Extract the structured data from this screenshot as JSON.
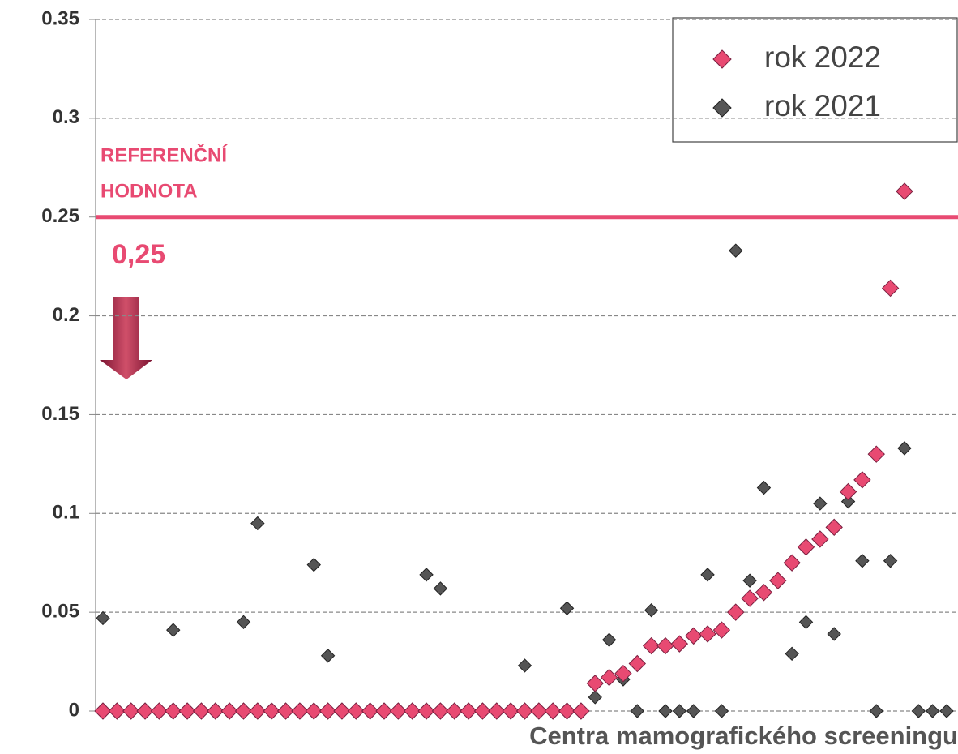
{
  "chart_data": {
    "type": "scatter",
    "xlabel": "Centra mamografického screeningu",
    "categories": [
      null,
      null,
      null,
      null,
      null,
      null,
      null,
      null,
      null,
      null,
      null,
      null,
      null,
      null,
      null,
      null,
      null,
      null,
      null,
      null,
      null,
      null,
      null,
      null,
      null,
      null,
      null,
      null,
      null,
      null,
      null,
      null,
      null,
      null,
      null,
      null,
      null,
      null,
      null,
      null,
      null,
      null,
      null,
      null,
      null,
      null,
      null,
      null,
      null,
      null,
      null,
      null,
      null,
      null,
      null,
      null,
      null,
      null,
      null,
      null,
      null
    ],
    "series": [
      {
        "name": "rok 2022",
        "color": "#e84a72",
        "values": [
          0,
          0,
          0,
          0,
          0,
          0,
          0,
          0,
          0,
          0,
          0,
          0,
          0,
          0,
          0,
          0,
          0,
          0,
          0,
          0,
          0,
          0,
          0,
          0,
          0,
          0,
          0,
          0,
          0,
          0,
          0,
          0,
          0,
          0,
          0,
          0.014,
          0.017,
          0.019,
          0.024,
          0.033,
          0.033,
          0.034,
          0.038,
          0.039,
          0.041,
          0.05,
          0.057,
          0.06,
          0.066,
          0.075,
          0.083,
          0.087,
          0.093,
          0.111,
          0.117,
          0.13,
          0.214,
          0.263,
          null,
          null,
          null
        ]
      },
      {
        "name": "rok 2021",
        "color": "#555555",
        "values": [
          0.047,
          null,
          null,
          null,
          null,
          0.041,
          null,
          null,
          null,
          null,
          0.045,
          0.095,
          null,
          null,
          null,
          0.074,
          0.028,
          null,
          null,
          null,
          null,
          null,
          null,
          0.069,
          0.062,
          null,
          null,
          null,
          null,
          null,
          0.023,
          null,
          null,
          0.052,
          null,
          0.007,
          0.036,
          0.016,
          0,
          0.051,
          0,
          0,
          0,
          0.069,
          0,
          0.233,
          0.066,
          0.113,
          null,
          0.029,
          0.045,
          0.105,
          0.039,
          0.106,
          0.076,
          0,
          0.076,
          0.133,
          0,
          0,
          0
        ]
      }
    ],
    "ylim": [
      0,
      0.35
    ],
    "yticks": [
      0,
      0.05,
      0.1,
      0.15,
      0.2,
      0.25,
      0.3,
      0.35
    ],
    "grid": true,
    "legend": "upper right",
    "reference_line": {
      "value": 0.25,
      "label": "0,25",
      "color": "#e84a72",
      "title": [
        "REFERENČNÍ",
        "HODNOTA"
      ]
    }
  }
}
